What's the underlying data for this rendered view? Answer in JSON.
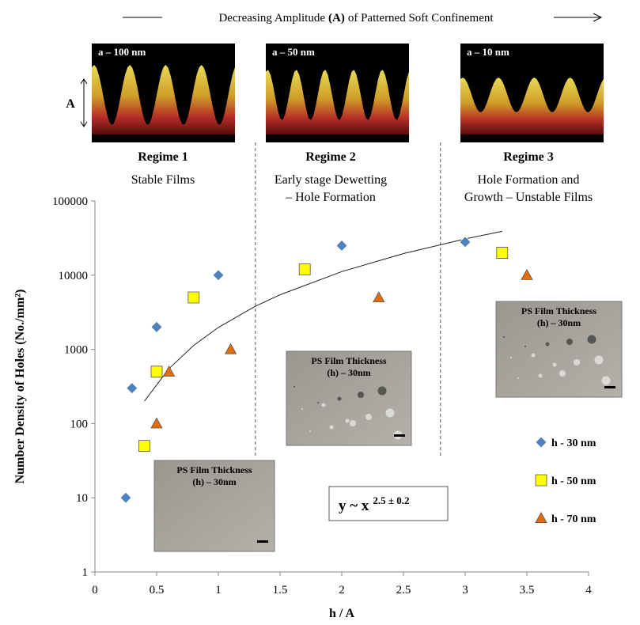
{
  "chart_data": {
    "type": "scatter",
    "header": {
      "left": "Decreasing Amplitude",
      "bold": "(A)",
      "right": "of Patterned Soft Confinement"
    },
    "panels": [
      {
        "image_label": "a – 100 nm",
        "regime": "Regime 1",
        "subtitle": [
          "Stable Films"
        ]
      },
      {
        "image_label": "a – 50 nm",
        "regime": "Regime 2",
        "subtitle": [
          "Early stage Dewetting",
          "– Hole Formation"
        ]
      },
      {
        "image_label": "a – 10 nm",
        "regime": "Regime 3",
        "subtitle": [
          "Hole Formation and",
          "Growth – Unstable Films"
        ]
      }
    ],
    "amplitude_label": "A",
    "insets": [
      {
        "lines": [
          "PS Film Thickness",
          "(h) – 30nm"
        ]
      },
      {
        "lines": [
          "PS Film Thickness",
          "(h) – 30nm"
        ]
      },
      {
        "lines": [
          "PS Film Thickness",
          "(h) – 30nm"
        ]
      }
    ],
    "equation": {
      "base": "y ~ x",
      "exponent": "2.5 ± 0.2"
    },
    "x_label": "h / A",
    "y_label": "Number Density of Holes (No./mm²)",
    "xlim": [
      0,
      4
    ],
    "xticks": [
      0,
      0.5,
      1,
      1.5,
      2,
      2.5,
      3,
      3.5,
      4
    ],
    "ylim": [
      1,
      100000
    ],
    "yticks": [
      1,
      10,
      100,
      1000,
      10000,
      100000
    ],
    "log_y": true,
    "regime_boundaries": [
      1.3,
      2.8
    ],
    "series": [
      {
        "name": "h - 30 nm",
        "color": "#4f81bd",
        "marker": "diamond",
        "x": [
          0.25,
          0.3,
          0.5,
          1.0,
          2.0,
          3.0
        ],
        "values": [
          10,
          300,
          2000,
          10000,
          25000,
          28000
        ]
      },
      {
        "name": "h - 50 nm",
        "color": "#ffff00",
        "marker": "square",
        "x": [
          0.4,
          0.5,
          0.8,
          1.7,
          3.3
        ],
        "values": [
          50,
          500,
          5000,
          12000,
          20000
        ]
      },
      {
        "name": "h - 70 nm",
        "color": "#e46c0a",
        "marker": "triangle",
        "x": [
          0.5,
          0.6,
          1.1,
          2.3,
          3.5
        ],
        "values": [
          100,
          500,
          1000,
          5000,
          10000
        ]
      }
    ],
    "trend": {
      "x": [
        0.4,
        0.6,
        0.8,
        1.0,
        1.3,
        1.5,
        2.0,
        2.5,
        3.0,
        3.3
      ],
      "values": [
        200,
        551,
        1131,
        1976,
        3808,
        5446,
        11180,
        19531,
        30810,
        39000
      ]
    }
  }
}
